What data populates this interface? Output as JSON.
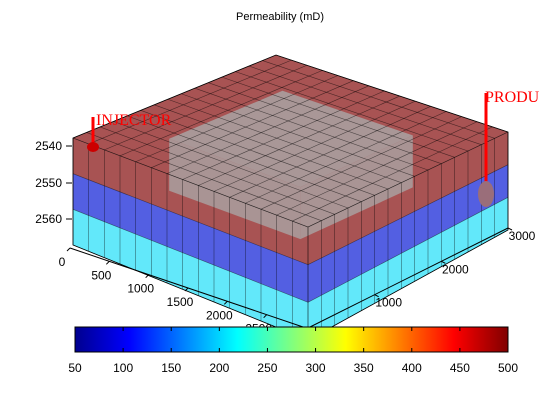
{
  "chart_data": {
    "type": "3d-grid",
    "title": "Permeability (mD)",
    "z_axis": {
      "ticks": [
        "2540",
        "2550",
        "2560"
      ],
      "reversed": true
    },
    "x_axis": {
      "ticks": [
        "0",
        "500",
        "1000",
        "1500",
        "2000",
        "2500",
        "3000"
      ],
      "range": [
        0,
        3000
      ]
    },
    "y_axis": {
      "ticks": [
        "0",
        "1000",
        "2000",
        "3000"
      ],
      "range": [
        0,
        3000
      ]
    },
    "grid": {
      "nx": 15,
      "ny": 15,
      "nz": 3
    },
    "layers": [
      {
        "layer": 1,
        "permeability": 500,
        "color": "#8b1a1a"
      },
      {
        "layer": 2,
        "permeability": 100,
        "color": "#1a2ad8"
      },
      {
        "layer": 3,
        "permeability": 200,
        "color": "#2de0f8"
      }
    ],
    "inner_block": {
      "color": "#a9a9a9"
    },
    "wells": [
      {
        "name": "INJECTOR",
        "color": "#ff0000"
      },
      {
        "name": "PRODU",
        "color": "#ff0000"
      }
    ],
    "colorbar": {
      "ticks": [
        "50",
        "100",
        "150",
        "200",
        "250",
        "300",
        "350",
        "400",
        "450",
        "500"
      ],
      "range": [
        50,
        500
      ],
      "colormap": "jet"
    }
  }
}
